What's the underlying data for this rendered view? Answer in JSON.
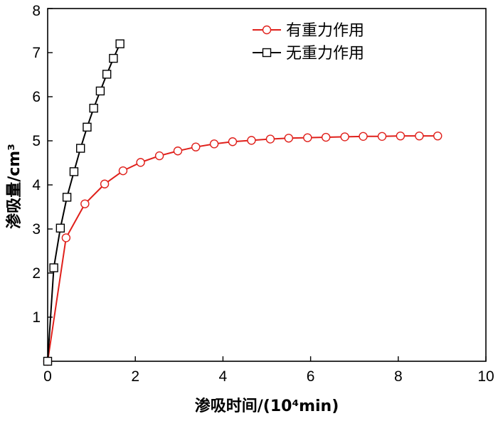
{
  "chart_data": {
    "type": "line",
    "xlabel": "渗吸时间/(10⁴min)",
    "ylabel": "渗吸量/cm³",
    "xlim": [
      0,
      10
    ],
    "ylim": [
      0,
      8
    ],
    "xticks": [
      "0",
      "2",
      "4",
      "6",
      "8",
      "10"
    ],
    "yticks": [
      "1",
      "2",
      "3",
      "4",
      "5",
      "6",
      "7",
      "8"
    ],
    "grid": false,
    "legend_position": "top-right",
    "series": [
      {
        "name": "有重力作用",
        "color": "#e0201b",
        "marker": "circle",
        "x": [
          0,
          0.42,
          0.85,
          1.3,
          1.72,
          2.12,
          2.55,
          2.97,
          3.38,
          3.8,
          4.22,
          4.65,
          5.08,
          5.5,
          5.93,
          6.35,
          6.78,
          7.2,
          7.63,
          8.05,
          8.48,
          8.9
        ],
        "y": [
          0,
          2.8,
          3.57,
          4.02,
          4.32,
          4.51,
          4.66,
          4.77,
          4.86,
          4.93,
          4.98,
          5.01,
          5.04,
          5.06,
          5.07,
          5.08,
          5.09,
          5.1,
          5.1,
          5.11,
          5.11,
          5.11
        ]
      },
      {
        "name": "无重力作用",
        "color": "#000000",
        "marker": "square",
        "x": [
          0,
          0.14,
          0.29,
          0.44,
          0.6,
          0.75,
          0.9,
          1.05,
          1.2,
          1.35,
          1.5,
          1.65
        ],
        "y": [
          0,
          2.12,
          3.02,
          3.72,
          4.3,
          4.83,
          5.31,
          5.74,
          6.13,
          6.51,
          6.87,
          7.2
        ]
      }
    ]
  }
}
